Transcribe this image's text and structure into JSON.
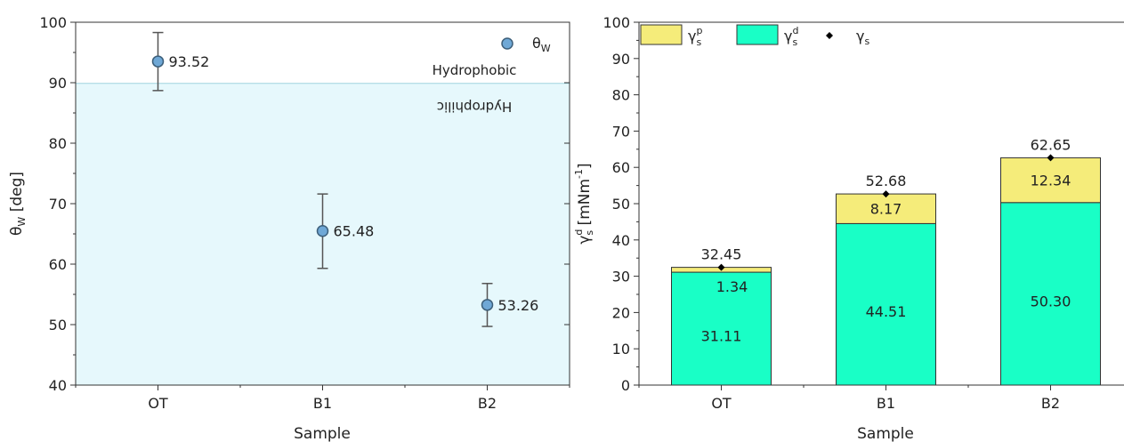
{
  "chart_data": [
    {
      "type": "scatter",
      "categories": [
        "OT",
        "B1",
        "B2"
      ],
      "values": [
        93.52,
        65.48,
        53.26
      ],
      "errors_upper": [
        98.3,
        71.6,
        56.8
      ],
      "errors_lower": [
        88.7,
        59.3,
        49.7
      ],
      "value_labels": [
        "93.52",
        "65.48",
        "53.26"
      ],
      "xlabel": "Sample",
      "ylabel": {
        "main": "θ",
        "sub": "W",
        "rest": " [deg]"
      },
      "ylim": [
        40,
        100
      ],
      "yticks": [
        "40",
        "50",
        "60",
        "70",
        "80",
        "90",
        "100"
      ],
      "threshold": 90,
      "region_above": "Hydrophobic",
      "region_below": "Hydrophilic",
      "legend": {
        "main": "θ",
        "sub": "W"
      },
      "legend_position": "top-right",
      "colors": {
        "marker": "#6fa8d6",
        "marker_edge": "#3d5f7a",
        "region_fill": "#e6f8fc",
        "error_bar": "#555555"
      }
    },
    {
      "type": "bar",
      "stacked": true,
      "categories": [
        "OT",
        "B1",
        "B2"
      ],
      "series": [
        {
          "values": [
            31.11,
            44.51,
            50.3
          ],
          "labels": [
            "31.11",
            "44.51",
            "50.30"
          ],
          "color": "#19ffc6"
        },
        {
          "values": [
            1.34,
            8.17,
            12.34
          ],
          "labels": [
            "1.34",
            "8.17",
            "12.34"
          ],
          "color": "#f5ec7a"
        }
      ],
      "totals": [
        32.45,
        52.68,
        62.65
      ],
      "total_labels": [
        "32.45",
        "52.68",
        "62.65"
      ],
      "xlabel": "Sample",
      "ylabel": {
        "main": "γ",
        "sup": "d",
        "sub": "s",
        "rest": " [mNm",
        "exp": "-1",
        "close": "]"
      },
      "ylim": [
        0,
        100
      ],
      "yticks": [
        "0",
        "10",
        "20",
        "30",
        "40",
        "50",
        "60",
        "70",
        "80",
        "90",
        "100"
      ],
      "legend": [
        {
          "main": "γ",
          "sup": "p",
          "sub": "s"
        },
        {
          "main": "γ",
          "sup": "d",
          "sub": "s"
        },
        {
          "main": "γ",
          "sub": "s"
        }
      ],
      "legend_position": "top-left"
    }
  ]
}
